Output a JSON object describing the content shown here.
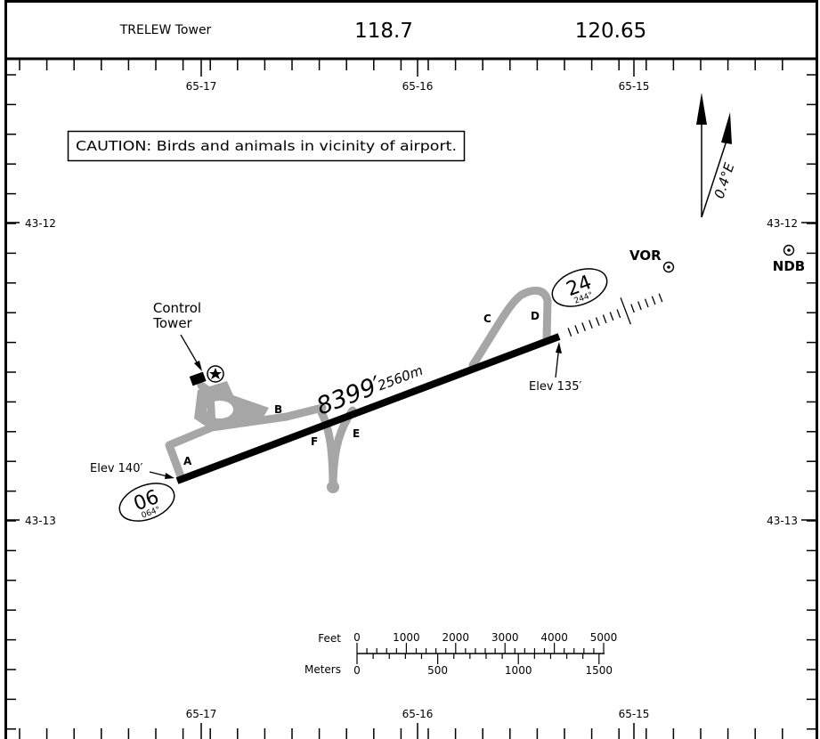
{
  "header": {
    "facility": "TRELEW Tower",
    "freq_1": "118.7",
    "freq_2": "120.65"
  },
  "longitudes": {
    "west": "65-17",
    "mid": "65-16",
    "east": "65-15"
  },
  "latitudes": {
    "north": "43-12",
    "south": "43-13"
  },
  "caution": "CAUTION: Birds and animals in vicinity of airport.",
  "magnetic_variation": "0.4°E",
  "runway": {
    "length_ft": "8399′",
    "length_m": "2560m",
    "end_06": {
      "number": "06",
      "heading": "064°",
      "elevation": "Elev 140′"
    },
    "end_24": {
      "number": "24",
      "heading": "244°",
      "elevation": "Elev 135′"
    }
  },
  "taxiways": {
    "a": "A",
    "b": "B",
    "c": "C",
    "d": "D",
    "e": "E",
    "f": "F"
  },
  "control_tower": {
    "line1": "Control",
    "line2": "Tower"
  },
  "navaids": {
    "vor": "VOR",
    "ndb": "NDB"
  },
  "scale": {
    "feet_label": "Feet",
    "meters_label": "Meters",
    "feet_ticks": [
      "0",
      "1000",
      "2000",
      "3000",
      "4000",
      "5000"
    ],
    "meter_ticks": [
      "0",
      "500",
      "1000",
      "1500"
    ]
  }
}
